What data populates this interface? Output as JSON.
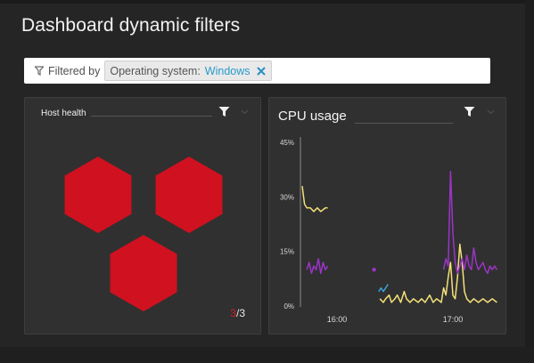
{
  "page": {
    "title": "Dashboard dynamic filters"
  },
  "filter_bar": {
    "label": "Filtered by",
    "chip": {
      "key": "Operating system:",
      "value": "Windows"
    }
  },
  "tiles": {
    "host_health": {
      "title": "Host health",
      "counter": {
        "current": "3",
        "total": "/3"
      },
      "hexagon_color": "#d0111f"
    },
    "cpu_usage": {
      "title": "CPU usage",
      "chart_data": {
        "type": "line",
        "title": "CPU usage",
        "xlabel": "",
        "ylabel": "",
        "y_ticks": [
          "45%",
          "30%",
          "15%",
          "0%"
        ],
        "x_ticks": [
          "16:00",
          "17:00"
        ],
        "ylim": [
          0,
          45
        ],
        "xlim": [
          15.7,
          17.4
        ],
        "grid": false,
        "series": [
          {
            "color": "#f5e07a",
            "segments": [
              [
                [
                  15.7,
                  33
                ],
                [
                  15.72,
                  28
                ],
                [
                  15.74,
                  27
                ],
                [
                  15.77,
                  27
                ],
                [
                  15.8,
                  26
                ],
                [
                  15.83,
                  27
                ],
                [
                  15.86,
                  26
                ],
                [
                  15.9,
                  27
                ],
                [
                  15.92,
                  27
                ]
              ],
              [
                [
                  16.37,
                  2
                ],
                [
                  16.4,
                  1
                ],
                [
                  16.42,
                  2
                ],
                [
                  16.45,
                  3
                ],
                [
                  16.47,
                  1
                ],
                [
                  16.5,
                  2
                ],
                [
                  16.52,
                  3
                ],
                [
                  16.55,
                  1
                ],
                [
                  16.58,
                  4
                ],
                [
                  16.6,
                  2
                ],
                [
                  16.63,
                  1
                ],
                [
                  16.66,
                  2
                ],
                [
                  16.7,
                  1
                ],
                [
                  16.73,
                  2
                ],
                [
                  16.76,
                  1
                ],
                [
                  16.8,
                  3
                ],
                [
                  16.83,
                  1
                ],
                [
                  16.86,
                  2
                ],
                [
                  16.9,
                  1
                ],
                [
                  16.92,
                  5
                ],
                [
                  16.94,
                  3
                ],
                [
                  16.96,
                  8
                ],
                [
                  16.98,
                  12
                ],
                [
                  17.0,
                  3
                ],
                [
                  17.02,
                  2
                ],
                [
                  17.04,
                  8
                ],
                [
                  17.06,
                  17
                ],
                [
                  17.08,
                  12
                ],
                [
                  17.1,
                  4
                ],
                [
                  17.12,
                  2
                ],
                [
                  17.15,
                  1
                ],
                [
                  17.18,
                  2
                ],
                [
                  17.22,
                  1
                ],
                [
                  17.26,
                  2
                ],
                [
                  17.3,
                  1
                ],
                [
                  17.34,
                  2
                ],
                [
                  17.38,
                  1
                ]
              ]
            ]
          },
          {
            "color": "#9b35c7",
            "segments": [
              [
                [
                  15.74,
                  10
                ],
                [
                  15.76,
                  12
                ],
                [
                  15.78,
                  9
                ],
                [
                  15.8,
                  11
                ],
                [
                  15.82,
                  10
                ],
                [
                  15.84,
                  13
                ],
                [
                  15.86,
                  9
                ],
                [
                  15.88,
                  12
                ],
                [
                  15.9,
                  10
                ],
                [
                  15.92,
                  11
                ]
              ],
              [
                [
                  16.32,
                  10
                ]
              ],
              [
                [
                  16.92,
                  10
                ],
                [
                  16.94,
                  13
                ],
                [
                  16.96,
                  11
                ],
                [
                  16.98,
                  37
                ],
                [
                  17.0,
                  20
                ],
                [
                  17.02,
                  12
                ],
                [
                  17.04,
                  9
                ],
                [
                  17.06,
                  11
                ],
                [
                  17.08,
                  13
                ],
                [
                  17.1,
                  10
                ],
                [
                  17.12,
                  14
                ],
                [
                  17.14,
                  11
                ],
                [
                  17.16,
                  10
                ],
                [
                  17.18,
                  16
                ],
                [
                  17.2,
                  12
                ],
                [
                  17.22,
                  10
                ],
                [
                  17.24,
                  11
                ],
                [
                  17.26,
                  12
                ],
                [
                  17.28,
                  10
                ],
                [
                  17.3,
                  9
                ],
                [
                  17.32,
                  11
                ],
                [
                  17.34,
                  10
                ],
                [
                  17.36,
                  11
                ],
                [
                  17.38,
                  10
                ]
              ]
            ]
          },
          {
            "color": "#3ba5d8",
            "segments": [
              [
                [
                  16.36,
                  4
                ],
                [
                  16.38,
                  5
                ],
                [
                  16.4,
                  4
                ],
                [
                  16.42,
                  5
                ],
                [
                  16.44,
                  6
                ]
              ]
            ]
          }
        ]
      }
    }
  }
}
